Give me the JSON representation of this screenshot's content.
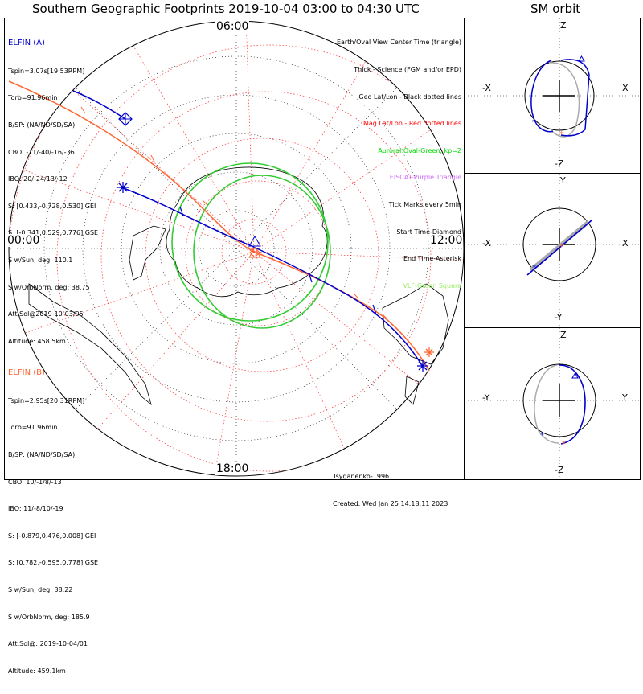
{
  "titles": {
    "main": "Southern Geographic Footprints 2019-10-04 03:00 to 04:30 UTC",
    "side": "SM orbit"
  },
  "time_labels": {
    "top": "06:00",
    "left": "00:00",
    "right": "12:00",
    "bottom": "18:00"
  },
  "elfin_a": {
    "header": "ELFIN (A)",
    "lines": [
      "Tspin=3.07s[19.53RPM]",
      "Torb=91.96min",
      "B/SP: (NA/ND/SD/SA)",
      "CBO: -11/-40/-16/-36",
      "IBO: 20/-24/13/-12",
      "S: [0.433,-0.728,0.530] GEI",
      "S: [-0.341,0.529,0.776] GSE",
      "S w/Sun, deg: 110.1",
      "S w/OrbNorm, deg: 38.75",
      "Att.Sol@2019-10-03/05",
      "Altitude: 458.5km"
    ]
  },
  "elfin_b": {
    "header": "ELFIN (B)",
    "lines": [
      "Tspin=2.95s[20.31RPM]",
      "Torb=91.96min",
      "B/SP: (NA/ND/SD/SA)",
      "CBO: 10/-1/8/-13",
      "IBO: 11/-8/10/-19",
      "S: [-0.879,0.476,0.008] GEI",
      "S: [0.782,-0.595,0.778] GSE",
      "S w/Sun, deg: 38.22",
      "S w/OrbNorm, deg: 185.9",
      "Att.Sol@: 2019-10-04/01",
      "Altitude: 459.1km"
    ]
  },
  "legend": [
    {
      "text": "Earth/Oval View Center Time (triangle)",
      "style": "black"
    },
    {
      "text": "Thick - Science (FGM and/or EPD)",
      "style": "black"
    },
    {
      "text": "Geo Lat/Lon - Black dotted lines",
      "style": "black"
    },
    {
      "text": "Mag Lat/Lon - Red dotted lines",
      "style": "red"
    },
    {
      "text": "Auroral Oval-Green, kp=2",
      "style": "green"
    },
    {
      "text": "EISCAT-Purple Triangle",
      "style": "purple"
    },
    {
      "text": "Tick Marks every 5min",
      "style": "black"
    },
    {
      "text": "Start Time-Diamond",
      "style": "black"
    },
    {
      "text": "End Time-Asterisk",
      "style": "black"
    },
    {
      "text": "VLF-Green Square",
      "style": "lime"
    }
  ],
  "footer": {
    "model": "Tsyganenko-1996",
    "created": "Created: Wed Jan 25 14:18:11 2023"
  },
  "orbit_panels": [
    {
      "top": "Z",
      "bottom": "-Z",
      "left": "-X",
      "right": "X"
    },
    {
      "top": "Y",
      "bottom": "-Y",
      "left": "-X",
      "right": "X"
    },
    {
      "top": "Z",
      "bottom": "-Z",
      "left": "-Y",
      "right": "Y"
    }
  ],
  "colors": {
    "elfin_a": "#0000cc",
    "elfin_b": "#ff6633",
    "auroral_oval": "#33cc33",
    "mag_grid": "#ff3333",
    "orbit_gray": "#aaaaaa"
  }
}
